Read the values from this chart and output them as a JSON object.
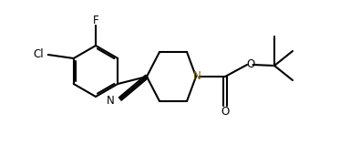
{
  "bg_color": "#ffffff",
  "line_color": "#000000",
  "n_color": "#7a6000",
  "bond_width": 1.5,
  "figsize": [
    3.73,
    1.7
  ],
  "dpi": 100,
  "font_size": 8.5,
  "xlim": [
    0,
    3.73
  ],
  "ylim": [
    0,
    1.7
  ]
}
